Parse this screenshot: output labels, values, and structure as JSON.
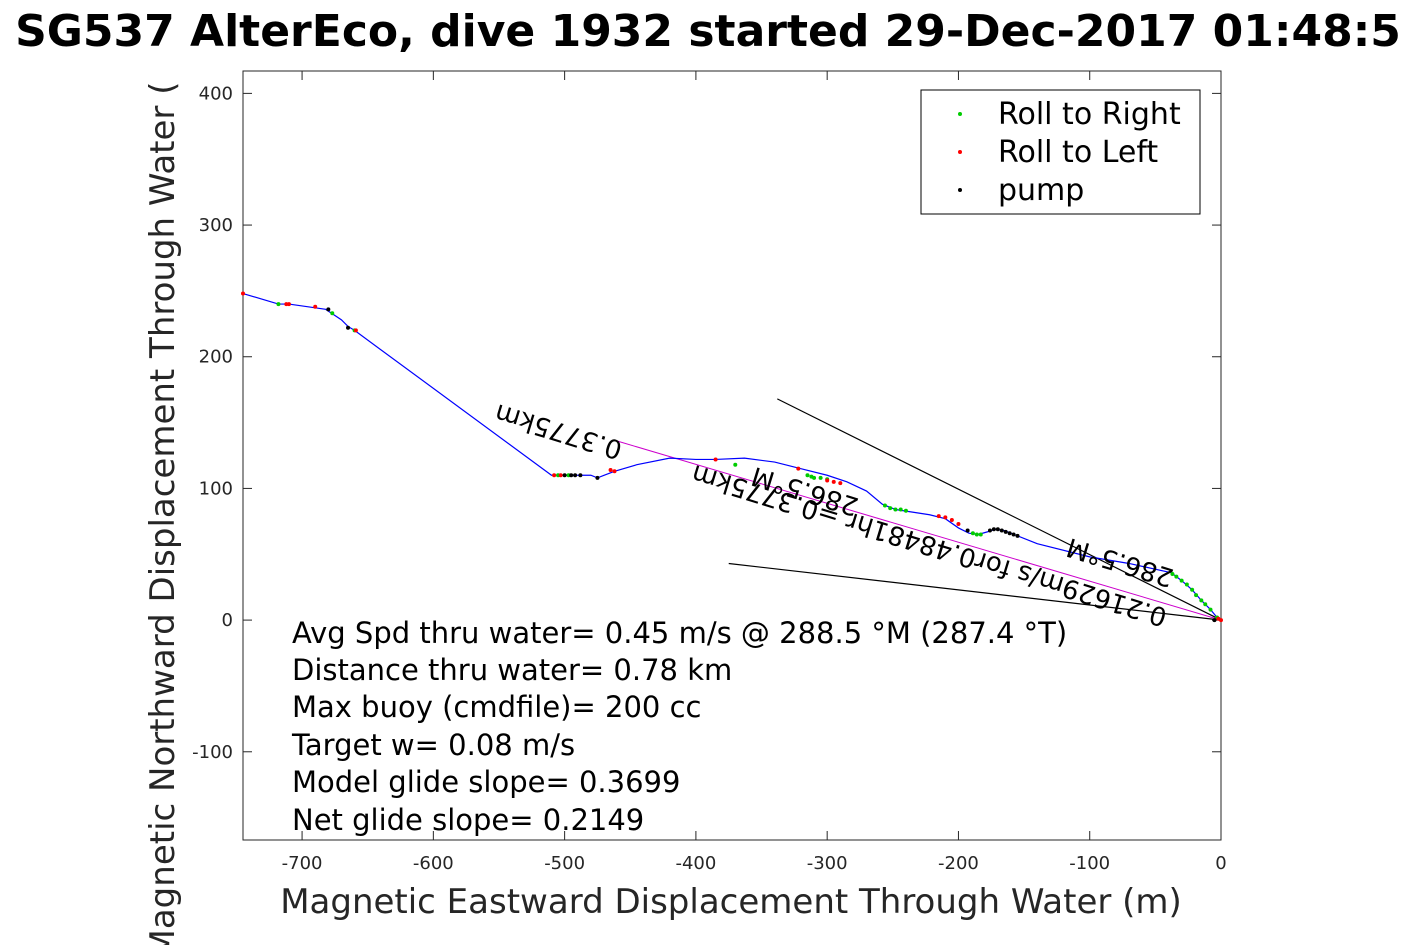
{
  "chart_data": {
    "type": "line",
    "title": "SG537 AlterEco, dive 1932 started 29-Dec-2017 01:48:5",
    "xlabel": "Magnetic Eastward Displacement Through Water (m)",
    "ylabel": "Magnetic Northward Displacement Through Water (",
    "xlim": [
      -745,
      0
    ],
    "ylim": [
      -167,
      417
    ],
    "xticks": [
      -700,
      -600,
      -500,
      -400,
      -300,
      -200,
      -100,
      0
    ],
    "xtick_labels": [
      "-700",
      "-600",
      "-500",
      "-400",
      "-300",
      "-200",
      "-100",
      "0"
    ],
    "yticks": [
      -100,
      0,
      100,
      200,
      300,
      400
    ],
    "ytick_labels": [
      "-100",
      "0",
      "100",
      "200",
      "300",
      "400"
    ],
    "grid": false,
    "legend_position": "top-right",
    "colors": {
      "track": "#0000ff",
      "roll_right": "#00cc00",
      "roll_left": "#ff0000",
      "pump": "#000000",
      "reference_lines": "#000000",
      "heading_line": "#cc00cc"
    },
    "track": {
      "x": [
        0,
        -3,
        -8,
        -15,
        -22,
        -30,
        -38,
        -70,
        -100,
        -140,
        -165,
        -172,
        -178,
        -185,
        -192,
        -200,
        -210,
        -222,
        -235,
        -248,
        -258,
        -270,
        -285,
        -300,
        -320,
        -340,
        -363,
        -385,
        -400,
        -420,
        -445,
        -462,
        -470,
        -475,
        -480,
        -490,
        -500,
        -510,
        -660,
        -665,
        -670,
        -682,
        -710,
        -718,
        -745
      ],
      "y": [
        0,
        2,
        8,
        15,
        23,
        30,
        36,
        43,
        48,
        58,
        68,
        69,
        67,
        65,
        66,
        70,
        77,
        80,
        82,
        84,
        88,
        98,
        105,
        110,
        115,
        120,
        123,
        122,
        122,
        123,
        118,
        113,
        110,
        108,
        110,
        110,
        110,
        110,
        220,
        223,
        228,
        236,
        240,
        240,
        248
      ]
    },
    "series": [
      {
        "name": "Roll to Right",
        "color": "#00cc00",
        "x": [
          -3,
          -8,
          -12,
          -15,
          -19,
          -22,
          -26,
          -30,
          -34,
          -37,
          -183,
          -186,
          -189,
          -240,
          -244,
          -248,
          -252,
          -256,
          -300,
          -305,
          -310,
          -312,
          -315,
          -370,
          -497,
          -505,
          -677,
          -660,
          -718
        ],
        "y": [
          2,
          8,
          12,
          15,
          19,
          23,
          27,
          30,
          33,
          35,
          65,
          65,
          66,
          83,
          84,
          84,
          85,
          87,
          107,
          108,
          108,
          109,
          110,
          118,
          110,
          110,
          233,
          220,
          240
        ]
      },
      {
        "name": "Roll to Left",
        "color": "#ff0000",
        "x": [
          0,
          -2,
          -200,
          -205,
          -210,
          -215,
          -290,
          -295,
          -300,
          -322,
          -385,
          -462,
          -465,
          -503,
          -508,
          -659,
          -690,
          -710,
          -712,
          -745
        ],
        "y": [
          0,
          1,
          73,
          76,
          78,
          79,
          104,
          105,
          106,
          115,
          122,
          113,
          114,
          110,
          110,
          220,
          238,
          240,
          240,
          248
        ]
      },
      {
        "name": "pump",
        "color": "#000000",
        "x": [
          -5,
          -155,
          -158,
          -161,
          -164,
          -167,
          -170,
          -173,
          -176,
          -193,
          -495,
          -492,
          -500,
          -488,
          -475,
          -665,
          -680
        ],
        "y": [
          0,
          64,
          65,
          66,
          67,
          68,
          69,
          69,
          68,
          68,
          110,
          110,
          110,
          110,
          108,
          222,
          236
        ]
      }
    ],
    "reference_lines": [
      {
        "x": [
          0,
          -338
        ],
        "y": [
          0,
          168
        ]
      },
      {
        "x": [
          0,
          -375
        ],
        "y": [
          0,
          43
        ]
      }
    ],
    "heading_line": {
      "x": [
        0,
        -460
      ],
      "y": [
        0,
        136
      ]
    },
    "annotations": [
      {
        "text": "286.5°M",
        "x": -35,
        "y": 38,
        "angle": 197
      },
      {
        "text": "0.21629m/s for0.48481hr =0.3775km",
        "x": -40,
        "y": 8,
        "angle": 197
      },
      {
        "text": "286.5°M",
        "x": -275,
        "y": 92,
        "angle": 197
      },
      {
        "text": "0.3775km",
        "x": -455,
        "y": 135,
        "angle": 197
      }
    ]
  },
  "legend": {
    "items": [
      "Roll to Right",
      "Roll to Left",
      "pump"
    ]
  },
  "stats": [
    "Avg Spd thru water=  0.45 m/s @ 288.5 °M (287.4 °T)",
    "Distance thru water=  0.78 km",
    "Max buoy (cmdfile)= 200 cc",
    "Target w= 0.08 m/s",
    "Model glide slope= 0.3699",
    "Net glide slope= 0.2149"
  ]
}
